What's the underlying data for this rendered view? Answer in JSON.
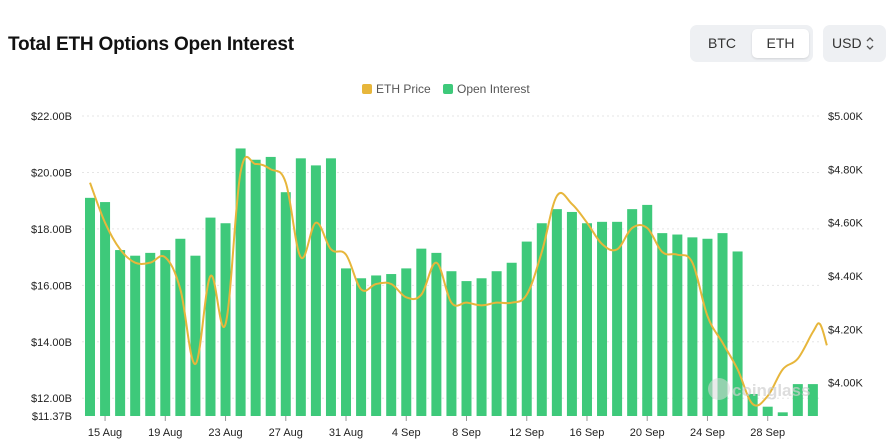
{
  "header": {
    "title": "Total ETH Options Open Interest",
    "toggle": {
      "btc": "BTC",
      "eth": "ETH"
    },
    "currency": "USD",
    "currency_icon": "chevron-up-down-icon"
  },
  "colors": {
    "bar": "#3ec97a",
    "line": "#e7b63b",
    "grid": "#e5e5e5",
    "text": "#333333",
    "legend_text": "#555555"
  },
  "watermark": "coinglass",
  "chart_data": {
    "type": "bar",
    "title": "Total ETH Options Open Interest",
    "legend": [
      "ETH Price",
      "Open Interest"
    ],
    "legend_position": "top-center",
    "xlabel": "",
    "ylabel": "",
    "x_tick_labels": [
      "15 Aug",
      "19 Aug",
      "23 Aug",
      "27 Aug",
      "31 Aug",
      "4 Sep",
      "8 Sep",
      "12 Sep",
      "16 Sep",
      "20 Sep",
      "24 Sep",
      "28 Sep"
    ],
    "y_left_ticks": [
      "$22.00B",
      "$20.00B",
      "$18.00B",
      "$16.00B",
      "$14.00B",
      "$12.00B",
      "$11.37B"
    ],
    "y_left_tick_values": [
      22,
      20,
      18,
      16,
      14,
      12,
      11.37
    ],
    "y_right_ticks": [
      "$5.00K",
      "$4.80K",
      "$4.60K",
      "$4.40K",
      "$4.20K",
      "$4.00K"
    ],
    "y_right_tick_values": [
      5.0,
      4.8,
      4.6,
      4.4,
      4.2,
      4.0
    ],
    "ylim_left": [
      11.37,
      22.0
    ],
    "ylim_right": [
      3.875,
      5.0
    ],
    "categories": [
      "14 Aug",
      "15 Aug",
      "16 Aug",
      "17 Aug",
      "18 Aug",
      "19 Aug",
      "20 Aug",
      "21 Aug",
      "22 Aug",
      "23 Aug",
      "24 Aug",
      "25 Aug",
      "26 Aug",
      "27 Aug",
      "28 Aug",
      "29 Aug",
      "30 Aug",
      "31 Aug",
      "1 Sep",
      "2 Sep",
      "3 Sep",
      "4 Sep",
      "5 Sep",
      "6 Sep",
      "7 Sep",
      "8 Sep",
      "9 Sep",
      "10 Sep",
      "11 Sep",
      "12 Sep",
      "13 Sep",
      "14 Sep",
      "15 Sep",
      "16 Sep",
      "17 Sep",
      "18 Sep",
      "19 Sep",
      "20 Sep",
      "21 Sep",
      "22 Sep",
      "23 Sep",
      "24 Sep",
      "25 Sep",
      "26 Sep",
      "27 Sep",
      "28 Sep",
      "29 Sep",
      "30 Sep",
      "1 Oct"
    ],
    "series": [
      {
        "name": "Open Interest",
        "type": "bar",
        "axis": "left",
        "values": [
          19.1,
          18.95,
          17.25,
          17.05,
          17.15,
          17.25,
          17.65,
          17.05,
          18.4,
          18.2,
          20.85,
          20.45,
          20.55,
          19.3,
          20.5,
          20.25,
          20.5,
          16.6,
          16.25,
          16.35,
          16.4,
          16.6,
          17.3,
          17.15,
          16.5,
          16.15,
          16.25,
          16.5,
          16.8,
          17.55,
          18.2,
          18.7,
          18.6,
          18.2,
          18.25,
          18.25,
          18.7,
          18.85,
          17.85,
          17.8,
          17.7,
          17.65,
          17.85,
          17.2,
          12.15,
          11.7,
          11.5,
          12.5,
          12.5
        ]
      },
      {
        "name": "ETH Price",
        "type": "line",
        "axis": "right",
        "values": [
          4.75,
          4.6,
          4.5,
          4.45,
          4.45,
          4.47,
          4.35,
          4.07,
          4.4,
          4.22,
          4.79,
          4.82,
          4.8,
          4.75,
          4.47,
          4.6,
          4.5,
          4.48,
          4.35,
          4.37,
          4.37,
          4.32,
          4.33,
          4.45,
          4.3,
          4.3,
          4.29,
          4.3,
          4.3,
          4.33,
          4.49,
          4.7,
          4.67,
          4.6,
          4.52,
          4.5,
          4.58,
          4.58,
          4.49,
          4.48,
          4.45,
          4.25,
          4.15,
          4.05,
          3.92,
          3.95,
          4.05,
          4.09,
          4.19
        ]
      }
    ],
    "tail_extra_price": [
      4.22,
      4.14
    ]
  }
}
